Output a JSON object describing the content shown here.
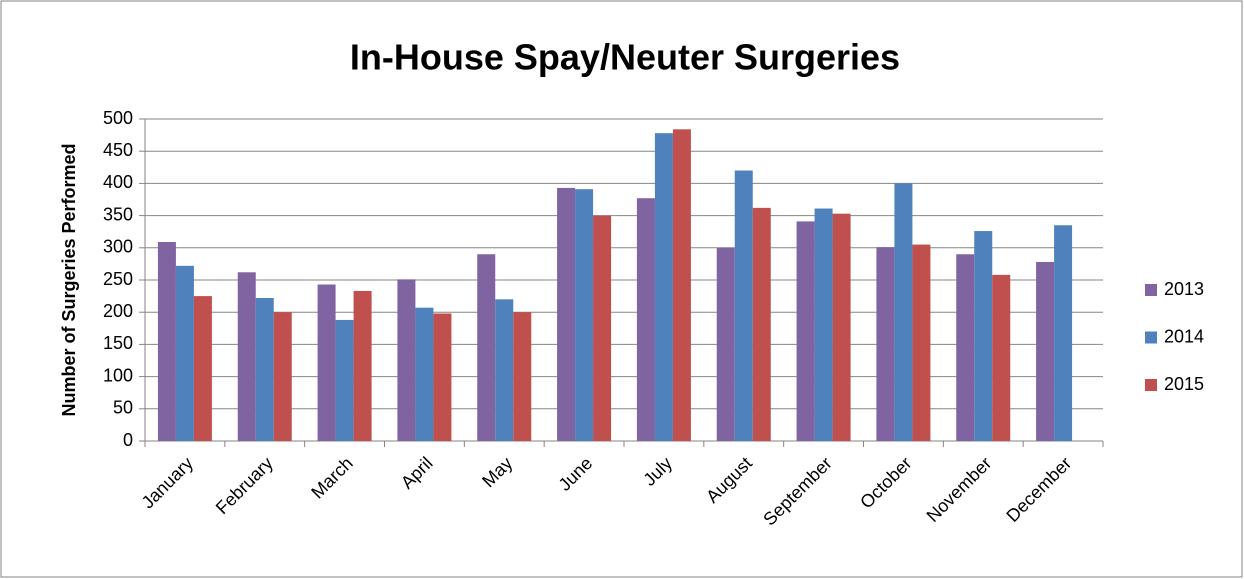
{
  "chart_data": {
    "type": "bar",
    "title": "In-House Spay/Neuter Surgeries",
    "y_label": "Number of Surgeries Performed",
    "categories": [
      "January",
      "February",
      "March",
      "April",
      "May",
      "June",
      "July",
      "August",
      "September",
      "October",
      "November",
      "December"
    ],
    "series": [
      {
        "name": "2013",
        "color": "#8064a2",
        "values": [
          309,
          262,
          243,
          251,
          290,
          393,
          377,
          300,
          341,
          301,
          290,
          278
        ]
      },
      {
        "name": "2014",
        "color": "#4f81bd",
        "values": [
          272,
          222,
          188,
          207,
          220,
          391,
          478,
          420,
          361,
          400,
          326,
          335
        ]
      },
      {
        "name": "2015",
        "color": "#c0504d",
        "values": [
          225,
          200,
          233,
          198,
          200,
          350,
          484,
          362,
          353,
          305,
          258,
          null
        ]
      }
    ],
    "ylim": [
      0,
      500
    ],
    "yticks": [
      0,
      50,
      100,
      150,
      200,
      250,
      300,
      350,
      400,
      450,
      500
    ],
    "grid": true,
    "legend": "right"
  }
}
